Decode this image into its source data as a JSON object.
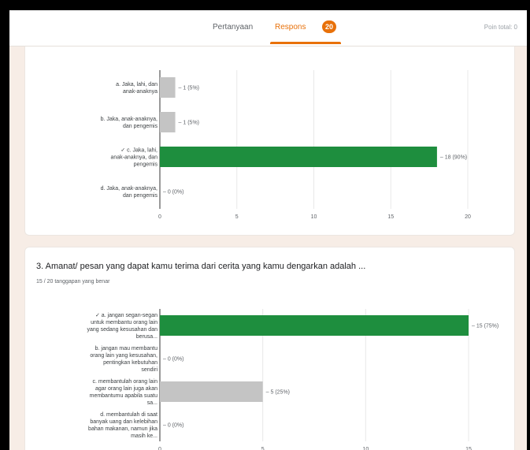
{
  "header": {
    "tab_questions": "Pertanyaan",
    "tab_responses": "Respons",
    "response_count": "20",
    "total_points": "Poin total: 0"
  },
  "colors": {
    "correct_bar": "#1e8e3e",
    "other_bar": "#c4c4c4",
    "accent": "#e8710a"
  },
  "chart_data": [
    {
      "type": "bar",
      "orientation": "horizontal",
      "categories": [
        "a. Jaka, lahi, dan anak-anaknya",
        "b. Jaka, anak-anaknya, dan pengemis",
        "✓ c. Jaka, lahi, anak-anaknya, dan pengemis",
        "d. Jaka, anak-anaknya, dan pengemis"
      ],
      "values": [
        1,
        1,
        18,
        0
      ],
      "value_labels": [
        "1 (5%)",
        "1 (5%)",
        "18 (90%)",
        "0 (0%)"
      ],
      "correct_index": 2,
      "xlim": [
        0,
        20
      ],
      "xticks": [
        "0",
        "5",
        "10",
        "15",
        "20"
      ]
    },
    {
      "type": "bar",
      "orientation": "horizontal",
      "title": "3. Amanat/ pesan yang dapat kamu terima dari cerita yang kamu dengarkan adalah ...",
      "subtitle": "15 / 20 tanggapan yang benar",
      "categories": [
        "✓ a. jangan segan-segan untuk membantu orang lain yang sedang kesusahan dan berusa...",
        "b. jangan mau membantu orang lain yang kesusahan, pentingkan kebutuhan sendiri",
        "c. membantulah orang lain agar orang lain juga akan membantumu apabila suatu sa...",
        "d. membantulah di saat banyak uang dan kelebihan bahan makanan, namun jika masih ke..."
      ],
      "values": [
        15,
        0,
        5,
        0
      ],
      "value_labels": [
        "15 (75%)",
        "0 (0%)",
        "5 (25%)",
        "0 (0%)"
      ],
      "correct_index": 0,
      "xlim": [
        0,
        15
      ],
      "xticks": [
        "0",
        "5",
        "10",
        "15"
      ]
    }
  ]
}
